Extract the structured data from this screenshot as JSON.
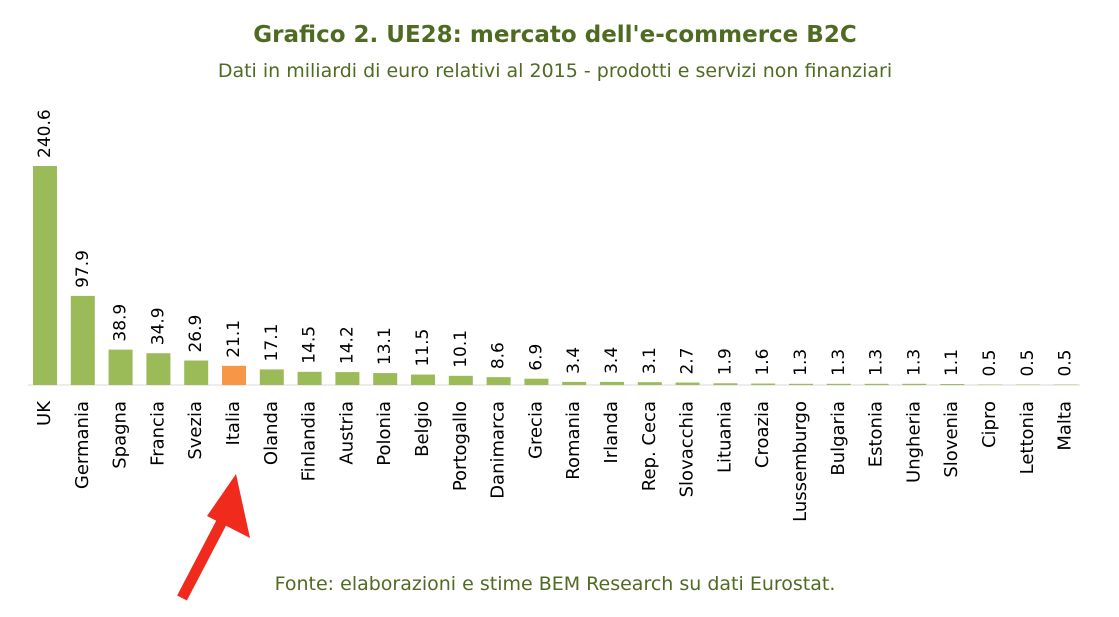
{
  "chart_data": {
    "type": "bar",
    "title": "Grafico 2. UE28: mercato dell'e-commerce B2C",
    "subtitle": "Dati in miliardi di euro relativi al 2015 - prodotti e servizi non finanziari",
    "source": "Fonte: elaborazioni e stime BEM Research su dati Eurostat.",
    "categories": [
      "UK",
      "Germania",
      "Spagna",
      "Francia",
      "Svezia",
      "Italia",
      "Olanda",
      "Finlandia",
      "Austria",
      "Polonia",
      "Belgio",
      "Portogallo",
      "Danimarca",
      "Grecia",
      "Romania",
      "Irlanda",
      "Rep. Ceca",
      "Slovacchia",
      "Lituania",
      "Croazia",
      "Lussemburgo",
      "Bulgaria",
      "Estonia",
      "Ungheria",
      "Slovenia",
      "Cipro",
      "Lettonia",
      "Malta"
    ],
    "values": [
      240.6,
      97.9,
      38.9,
      34.9,
      26.9,
      21.1,
      17.1,
      14.5,
      14.2,
      13.1,
      11.5,
      10.1,
      8.6,
      6.9,
      3.4,
      3.4,
      3.1,
      2.7,
      1.9,
      1.6,
      1.3,
      1.3,
      1.3,
      1.3,
      1.1,
      0.5,
      0.5,
      0.5
    ],
    "colors": [
      "#9bbb59",
      "#9bbb59",
      "#9bbb59",
      "#9bbb59",
      "#9bbb59",
      "#f79646",
      "#9bbb59",
      "#9bbb59",
      "#9bbb59",
      "#9bbb59",
      "#9bbb59",
      "#9bbb59",
      "#9bbb59",
      "#9bbb59",
      "#9bbb59",
      "#9bbb59",
      "#9bbb59",
      "#9bbb59",
      "#9bbb59",
      "#9bbb59",
      "#9bbb59",
      "#9bbb59",
      "#9bbb59",
      "#9bbb59",
      "#9bbb59",
      "#9bbb59",
      "#9bbb59",
      "#9bbb59"
    ]
  }
}
